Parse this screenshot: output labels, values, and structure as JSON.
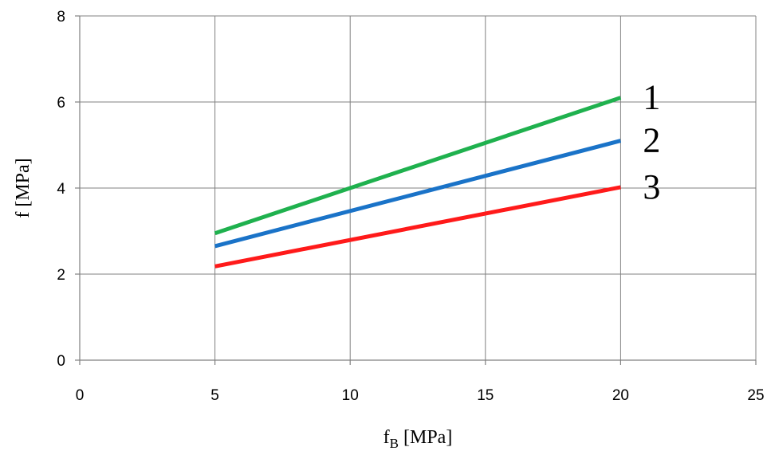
{
  "chart_data": {
    "type": "line",
    "title": "",
    "xlabel": "f",
    "xlabel_sub": "B",
    "xlabel_unit": " [MPa]",
    "ylabel": "f [MPa]",
    "xlim": [
      0,
      25
    ],
    "ylim": [
      0,
      8
    ],
    "xticks": [
      0,
      5,
      10,
      15,
      20,
      25
    ],
    "yticks": [
      0,
      2,
      4,
      6,
      8
    ],
    "grid": true,
    "legend": "none",
    "series": [
      {
        "name": "1",
        "color": "#1FB14E",
        "x": [
          5,
          20
        ],
        "y": [
          2.95,
          6.1
        ]
      },
      {
        "name": "2",
        "color": "#1A73C8",
        "x": [
          5,
          20
        ],
        "y": [
          2.65,
          5.1
        ]
      },
      {
        "name": "3",
        "color": "#FF1A1A",
        "x": [
          5,
          20
        ],
        "y": [
          2.18,
          4.02
        ]
      }
    ]
  }
}
